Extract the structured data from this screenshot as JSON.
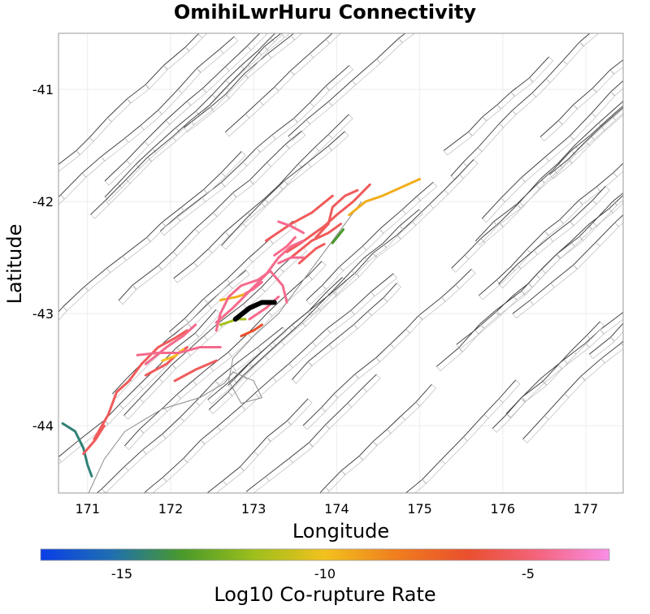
{
  "chart_data": {
    "type": "map",
    "title": "OmihiLwrHuru Connectivity",
    "xlabel": "Longitude",
    "ylabel": "Latitude",
    "xlim": [
      170.65,
      177.45
    ],
    "ylim": [
      -44.6,
      -40.5
    ],
    "xticks": [
      171,
      172,
      173,
      174,
      175,
      176,
      177
    ],
    "yticks": [
      -41,
      -42,
      -43,
      -44
    ],
    "xtick_labels": [
      "171",
      "172",
      "173",
      "174",
      "175",
      "176",
      "177"
    ],
    "ytick_labels": [
      "-41",
      "-42",
      "-43",
      "-44"
    ],
    "grid": true,
    "colorbar": {
      "label": "Log10 Co-rupture Rate",
      "range": [
        -17,
        -3
      ],
      "ticks": [
        -15,
        -10,
        -5
      ],
      "tick_labels": [
        "-15",
        "-10",
        "-5"
      ],
      "colormap": [
        "#0a3ee8",
        "#1f6fb0",
        "#4a9a2a",
        "#9cbf1c",
        "#f2c11d",
        "#f07e1e",
        "#ea4f2d",
        "#f4647d",
        "#f88ee8"
      ]
    },
    "target_fault": {
      "name": "OmihiLwrHuru",
      "color": "#000000",
      "points": [
        [
          172.78,
          -43.05
        ],
        [
          172.95,
          -42.95
        ],
        [
          173.1,
          -42.9
        ],
        [
          173.25,
          -42.9
        ]
      ]
    },
    "corupture_faults": [
      {
        "log10_rate": -14.5,
        "points": [
          [
            170.7,
            -43.98
          ],
          [
            170.85,
            -44.05
          ],
          [
            170.95,
            -44.2
          ],
          [
            171.0,
            -44.35
          ],
          [
            171.05,
            -44.45
          ]
        ]
      },
      {
        "log10_rate": -13.5,
        "points": [
          [
            173.95,
            -42.37
          ],
          [
            174.08,
            -42.25
          ]
        ]
      },
      {
        "log10_rate": -5.5,
        "points": [
          [
            170.95,
            -44.25
          ],
          [
            171.1,
            -44.12
          ],
          [
            171.2,
            -44.0
          ]
        ]
      },
      {
        "log10_rate": -5.5,
        "points": [
          [
            171.08,
            -44.12
          ],
          [
            171.25,
            -43.9
          ],
          [
            171.35,
            -43.7
          ],
          [
            171.5,
            -43.6
          ],
          [
            171.65,
            -43.45
          ]
        ]
      },
      {
        "log10_rate": -5.5,
        "points": [
          [
            171.65,
            -43.45
          ],
          [
            171.85,
            -43.3
          ],
          [
            172.05,
            -43.22
          ],
          [
            172.2,
            -43.15
          ]
        ]
      },
      {
        "log10_rate": -5.5,
        "points": [
          [
            171.7,
            -43.55
          ],
          [
            171.95,
            -43.45
          ],
          [
            172.1,
            -43.35
          ],
          [
            172.2,
            -43.3
          ]
        ]
      },
      {
        "log10_rate": -5.5,
        "points": [
          [
            172.05,
            -43.6
          ],
          [
            172.3,
            -43.5
          ],
          [
            172.55,
            -43.42
          ]
        ]
      },
      {
        "log10_rate": -5.5,
        "points": [
          [
            173.4,
            -42.45
          ],
          [
            173.55,
            -42.38
          ],
          [
            173.7,
            -42.3
          ],
          [
            173.85,
            -42.22
          ],
          [
            174.0,
            -42.12
          ],
          [
            174.2,
            -42.0
          ],
          [
            174.4,
            -41.85
          ]
        ]
      },
      {
        "log10_rate": -5.5,
        "points": [
          [
            173.15,
            -42.35
          ],
          [
            173.45,
            -42.2
          ],
          [
            173.7,
            -42.1
          ],
          [
            173.95,
            -41.95
          ]
        ]
      },
      {
        "log10_rate": -5.5,
        "points": [
          [
            173.45,
            -42.5
          ],
          [
            173.7,
            -42.35
          ],
          [
            173.9,
            -42.28
          ],
          [
            174.05,
            -42.2
          ]
        ]
      },
      {
        "log10_rate": -5.5,
        "points": [
          [
            173.75,
            -42.32
          ],
          [
            173.9,
            -42.2
          ],
          [
            173.95,
            -42.05
          ],
          [
            174.1,
            -41.95
          ],
          [
            174.25,
            -41.9
          ]
        ]
      },
      {
        "log10_rate": -5.5,
        "points": [
          [
            173.55,
            -42.55
          ],
          [
            173.75,
            -42.42
          ],
          [
            173.85,
            -42.38
          ]
        ]
      },
      {
        "log10_rate": -6.5,
        "points": [
          [
            172.85,
            -43.2
          ],
          [
            173.0,
            -43.15
          ],
          [
            173.1,
            -43.1
          ]
        ]
      },
      {
        "log10_rate": -9.5,
        "points": [
          [
            174.15,
            -42.12
          ],
          [
            174.35,
            -42.0
          ],
          [
            174.55,
            -41.95
          ],
          [
            174.7,
            -41.9
          ],
          [
            174.85,
            -41.85
          ],
          [
            175.0,
            -41.8
          ]
        ]
      },
      {
        "log10_rate": -9.5,
        "points": [
          [
            172.6,
            -42.88
          ],
          [
            172.8,
            -42.85
          ],
          [
            172.92,
            -42.82
          ]
        ]
      },
      {
        "log10_rate": -10.0,
        "points": [
          [
            171.9,
            -43.42
          ],
          [
            172.05,
            -43.38
          ],
          [
            172.15,
            -43.32
          ]
        ]
      },
      {
        "log10_rate": -11.5,
        "points": [
          [
            172.6,
            -43.1
          ],
          [
            172.8,
            -43.05
          ],
          [
            172.9,
            -43.05
          ]
        ]
      },
      {
        "log10_rate": -4.5,
        "points": [
          [
            171.6,
            -43.37
          ],
          [
            171.85,
            -43.35
          ],
          [
            172.1,
            -43.35
          ],
          [
            172.35,
            -43.3
          ],
          [
            172.6,
            -43.3
          ]
        ]
      },
      {
        "log10_rate": -4.5,
        "points": [
          [
            171.7,
            -43.45
          ],
          [
            171.95,
            -43.3
          ],
          [
            172.15,
            -43.2
          ],
          [
            172.3,
            -43.1
          ]
        ]
      },
      {
        "log10_rate": -4.5,
        "points": [
          [
            172.55,
            -43.08
          ],
          [
            172.75,
            -42.95
          ],
          [
            172.95,
            -42.8
          ],
          [
            173.15,
            -42.65
          ],
          [
            173.3,
            -42.5
          ],
          [
            173.45,
            -42.4
          ],
          [
            173.6,
            -42.35
          ]
        ]
      },
      {
        "log10_rate": -4.5,
        "points": [
          [
            172.55,
            -43.15
          ],
          [
            172.6,
            -43.0
          ],
          [
            172.7,
            -42.85
          ],
          [
            172.85,
            -42.75
          ],
          [
            173.05,
            -42.7
          ],
          [
            173.2,
            -42.62
          ]
        ]
      },
      {
        "log10_rate": -4.5,
        "points": [
          [
            173.2,
            -42.62
          ],
          [
            173.35,
            -42.75
          ],
          [
            173.4,
            -42.9
          ]
        ]
      },
      {
        "log10_rate": -4.5,
        "points": [
          [
            173.3,
            -42.55
          ],
          [
            173.45,
            -42.5
          ],
          [
            173.6,
            -42.5
          ]
        ]
      },
      {
        "log10_rate": -4.5,
        "points": [
          [
            173.25,
            -42.48
          ],
          [
            173.4,
            -42.4
          ],
          [
            173.5,
            -42.32
          ]
        ]
      },
      {
        "log10_rate": -4.5,
        "points": [
          [
            172.95,
            -43.05
          ],
          [
            173.15,
            -42.95
          ],
          [
            173.3,
            -42.85
          ]
        ]
      },
      {
        "log10_rate": -4.5,
        "points": [
          [
            172.9,
            -42.82
          ],
          [
            173.0,
            -42.78
          ],
          [
            173.1,
            -42.72
          ]
        ]
      },
      {
        "log10_rate": -4.5,
        "points": [
          [
            173.3,
            -42.18
          ],
          [
            173.45,
            -42.22
          ],
          [
            173.6,
            -42.28
          ]
        ]
      }
    ]
  }
}
